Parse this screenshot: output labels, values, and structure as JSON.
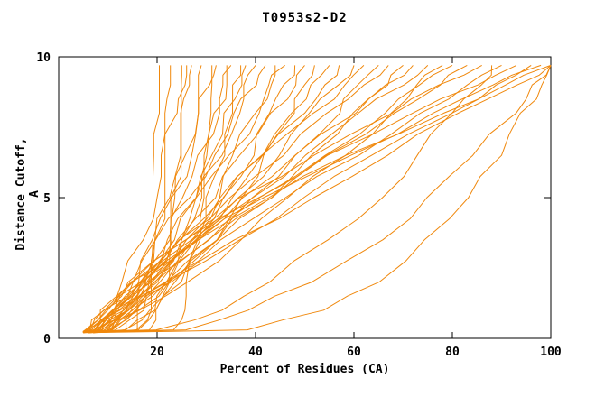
{
  "chart_data": {
    "type": "line",
    "title": "T0953s2-D2",
    "xlabel": "Percent of Residues (CA)",
    "ylabel": "Distance Cutoff, A",
    "xlim": [
      0,
      100
    ],
    "ylim": [
      0,
      10
    ],
    "x_ticks": [
      20,
      40,
      60,
      80,
      100
    ],
    "y_ticks": [
      0,
      5,
      10
    ],
    "grid": false,
    "legend": "none",
    "line_color": "#f0880c",
    "axis_color": "#000000",
    "series_format": "each series entry is the list of x values (percent of residues) at the shared y_levels (distance cutoff in Angstrom)",
    "y_levels": [
      0.2,
      0.3,
      1,
      2,
      3.5,
      5,
      6.5,
      8,
      9,
      9.7
    ],
    "series": [
      [
        6,
        15.2,
        16.7,
        17.6,
        18.4,
        18.9,
        19.3,
        19.7,
        19.9,
        20
      ],
      [
        5,
        16.2,
        17.9,
        19.1,
        20,
        20.7,
        21.2,
        21.6,
        21.8,
        22
      ],
      [
        6,
        18.5,
        20.5,
        21.7,
        22.8,
        23.5,
        24.1,
        24.6,
        24.8,
        25
      ],
      [
        7,
        22.8,
        25.3,
        26.8,
        28.2,
        29.2,
        29.9,
        30.4,
        30.8,
        31
      ],
      [
        5,
        11.5,
        14.9,
        17.7,
        20.4,
        22.4,
        24.1,
        25.6,
        26.4,
        27
      ],
      [
        6,
        12.8,
        16.4,
        19.2,
        22.1,
        24.2,
        26,
        27.5,
        28.4,
        29
      ],
      [
        6,
        14.3,
        18.7,
        22.1,
        25.6,
        28.2,
        30.3,
        32.2,
        33.3,
        34
      ],
      [
        7,
        15.9,
        20.6,
        24.3,
        28,
        30.8,
        33.1,
        35.1,
        36.2,
        37
      ],
      [
        6,
        8.5,
        11.1,
        13.7,
        16.9,
        19.4,
        21.7,
        23.8,
        25.1,
        26
      ],
      [
        5,
        8.4,
        11.9,
        15.4,
        19.7,
        23.1,
        26.2,
        29.1,
        30.8,
        32
      ],
      [
        6,
        9.6,
        13.4,
        17.2,
        21.7,
        25.5,
        28.8,
        31.8,
        33.7,
        35
      ],
      [
        5,
        9.1,
        13.4,
        17.8,
        22.9,
        27.2,
        31,
        34.4,
        36.5,
        38
      ],
      [
        6,
        10.3,
        14.7,
        19.2,
        24.5,
        28.8,
        32.8,
        36.3,
        38.5,
        40
      ],
      [
        7,
        11.6,
        16.5,
        21.3,
        27.1,
        31.9,
        36.1,
        40,
        42.4,
        44
      ],
      [
        5,
        10.4,
        16,
        21.6,
        28.3,
        33.9,
        38.8,
        43.3,
        46.1,
        48
      ],
      [
        7,
        12.6,
        18.5,
        24.4,
        31.4,
        37.2,
        42.4,
        47.1,
        50,
        52
      ],
      [
        5,
        6.9,
        10.4,
        14.7,
        20.6,
        26.1,
        31.3,
        36.5,
        39.7,
        42
      ],
      [
        6,
        8.1,
        11.8,
        16.4,
        22.8,
        28.8,
        34.5,
        40,
        43.5,
        46
      ],
      [
        6,
        8.3,
        12.4,
        17.5,
        24.5,
        31,
        37.3,
        43.4,
        47.3,
        50
      ],
      [
        5,
        7.6,
        12.3,
        18.1,
        26.1,
        33.5,
        40.6,
        47.5,
        51.9,
        55
      ],
      [
        6,
        8.7,
        13.4,
        19.3,
        27.5,
        35,
        42.3,
        49.4,
        53.8,
        57
      ],
      [
        5,
        7.9,
        13,
        19.4,
        28.2,
        36.3,
        44.2,
        51.8,
        56.6,
        60
      ],
      [
        7,
        10,
        15.4,
        22.1,
        31.4,
        40,
        48.3,
        56.3,
        61.4,
        65
      ],
      [
        6,
        9.3,
        15.3,
        22.7,
        32.9,
        42.4,
        51.6,
        60.4,
        66,
        70
      ],
      [
        7,
        10.7,
        17.3,
        25.5,
        36.9,
        47.4,
        57.6,
        67.4,
        73.6,
        78
      ],
      [
        6,
        7.2,
        10.6,
        15.9,
        24.3,
        33,
        42.1,
        51.4,
        57.6,
        62
      ],
      [
        5,
        6.4,
        10.1,
        15.9,
        25.2,
        34.9,
        44.9,
        55.2,
        62.1,
        67
      ],
      [
        6,
        7.4,
        11.4,
        17.6,
        27.5,
        37.8,
        48.5,
        59.5,
        66.8,
        72
      ],
      [
        5,
        6.5,
        10.8,
        17.3,
        27.8,
        38.7,
        50.1,
        61.7,
        69.4,
        75
      ],
      [
        6,
        7.6,
        12.1,
        19,
        30.1,
        41.7,
        53.7,
        65.9,
        74.2,
        80
      ],
      [
        5,
        6.7,
        11.4,
        18.7,
        30.4,
        42.6,
        55.2,
        68.2,
        76.8,
        83
      ],
      [
        6,
        7.8,
        12.9,
        20.8,
        33.4,
        46.5,
        60.1,
        74,
        83.4,
        90
      ],
      [
        7,
        9,
        14.3,
        22.7,
        36,
        49.9,
        64.3,
        79.1,
        89,
        96
      ],
      [
        6,
        8.1,
        13.7,
        22.5,
        36.6,
        51.3,
        66.5,
        82.1,
        92.6,
        100
      ],
      [
        6,
        6.6,
        9.3,
        14.8,
        25.2,
        37.6,
        51.7,
        67.1,
        78.1,
        86
      ],
      [
        5,
        5.7,
        8.7,
        14.7,
        26.1,
        39.8,
        55.2,
        72.2,
        84.3,
        93
      ],
      [
        6,
        6.7,
        9.8,
        16.1,
        28.1,
        42.3,
        58.5,
        76.3,
        88.9,
        98
      ],
      [
        5,
        5.7,
        9,
        15.5,
        27.8,
        42.5,
        59.2,
        77.6,
        90.6,
        100
      ],
      [
        6,
        39.2,
        53.6,
        64.5,
        75.2,
        83,
        89.4,
        94.7,
        97.9,
        100
      ],
      [
        5,
        25,
        39.2,
        51.6,
        65,
        75.5,
        84.3,
        92.1,
        96.9,
        100
      ],
      [
        6,
        20.4,
        32.3,
        43.2,
        55.3,
        64.9,
        73.2,
        80.5,
        85,
        88
      ]
    ]
  }
}
